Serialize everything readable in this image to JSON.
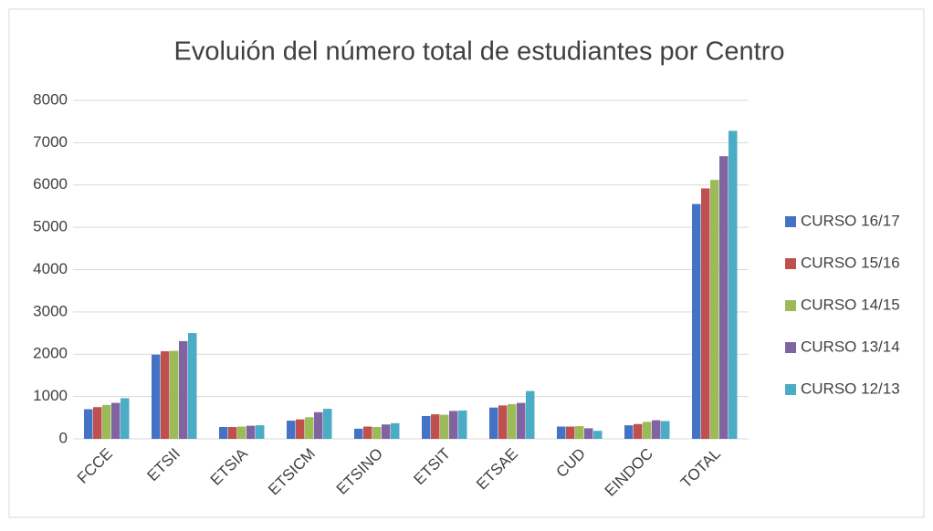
{
  "chart_data": {
    "type": "bar",
    "title": "Evoluión del número total de estudiantes por Centro",
    "categories": [
      "FCCE",
      "ETSII",
      "ETSIA",
      "ETSICM",
      "ETSINO",
      "ETSIT",
      "ETSAE",
      "CUD",
      "EINDOC",
      "TOTAL"
    ],
    "series": [
      {
        "name": "CURSO 16/17",
        "color": "#4472c4",
        "values": [
          700,
          1990,
          280,
          430,
          240,
          540,
          740,
          290,
          320,
          5550
        ]
      },
      {
        "name": "CURSO 15/16",
        "color": "#c0504d",
        "values": [
          750,
          2070,
          280,
          460,
          290,
          580,
          790,
          290,
          350,
          5920
        ]
      },
      {
        "name": "CURSO 14/15",
        "color": "#9bbb59",
        "values": [
          800,
          2080,
          290,
          510,
          280,
          570,
          820,
          300,
          400,
          6120
        ]
      },
      {
        "name": "CURSO 13/14",
        "color": "#8064a2",
        "values": [
          850,
          2310,
          310,
          630,
          340,
          660,
          850,
          250,
          440,
          6680
        ]
      },
      {
        "name": "CURSO 12/13",
        "color": "#4bacc6",
        "values": [
          960,
          2500,
          320,
          710,
          370,
          670,
          1130,
          190,
          420,
          7280
        ]
      }
    ],
    "ylim": [
      0,
      8000
    ],
    "yticks": [
      0,
      1000,
      2000,
      3000,
      4000,
      5000,
      6000,
      7000,
      8000
    ],
    "grid": true,
    "legend": "right"
  }
}
